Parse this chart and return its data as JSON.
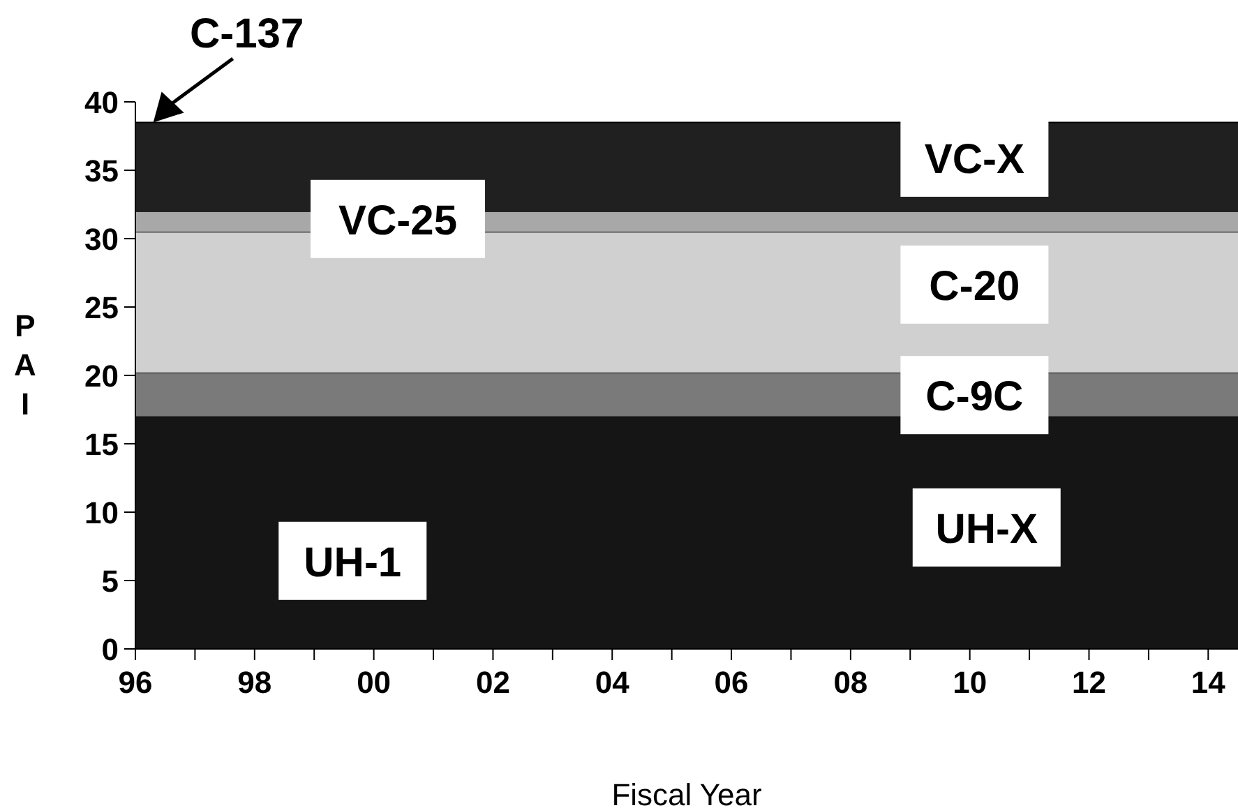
{
  "chart_data": {
    "type": "area",
    "stacked": true,
    "xlabel": "Fiscal Year",
    "ylabel": "PAI",
    "x": [
      1996,
      2014.5
    ],
    "series": [
      {
        "color": "#151515",
        "values": [
          17,
          17
        ]
      },
      {
        "color": "#7a7a7a",
        "values": [
          3.2,
          3.2
        ]
      },
      {
        "color": "#d0d0d0",
        "values": [
          10.3,
          10.3
        ]
      },
      {
        "color": "#a8a8a8",
        "values": [
          1.5,
          1.5
        ]
      },
      {
        "color": "#202020",
        "values": [
          6.5,
          6.5
        ]
      }
    ],
    "xlim": [
      1996,
      2014.5
    ],
    "xticks": [
      {
        "value": 1996,
        "label": "96"
      },
      {
        "value": 1997,
        "label": null
      },
      {
        "value": 1998,
        "label": "98"
      },
      {
        "value": 1999,
        "label": null
      },
      {
        "value": 2000,
        "label": "00"
      },
      {
        "value": 2001,
        "label": null
      },
      {
        "value": 2002,
        "label": "02"
      },
      {
        "value": 2003,
        "label": null
      },
      {
        "value": 2004,
        "label": "04"
      },
      {
        "value": 2005,
        "label": null
      },
      {
        "value": 2006,
        "label": "06"
      },
      {
        "value": 2007,
        "label": null
      },
      {
        "value": 2008,
        "label": "08"
      },
      {
        "value": 2009,
        "label": null
      },
      {
        "value": 2010,
        "label": "10"
      },
      {
        "value": 2011,
        "label": null
      },
      {
        "value": 2012,
        "label": "12"
      },
      {
        "value": 2013,
        "label": null
      },
      {
        "value": 2014,
        "label": "14"
      }
    ],
    "ylim": [
      0,
      40
    ],
    "yticks": [
      0,
      5,
      10,
      15,
      20,
      25,
      30,
      35,
      40
    ],
    "grid": false,
    "legend": false,
    "annotations": [
      {
        "text": "C-137",
        "x": 1996.3,
        "y": 38.5
      },
      "VC-X",
      "VC-25",
      "C-20",
      "C-9C",
      "UH-X",
      "UH-1"
    ]
  }
}
